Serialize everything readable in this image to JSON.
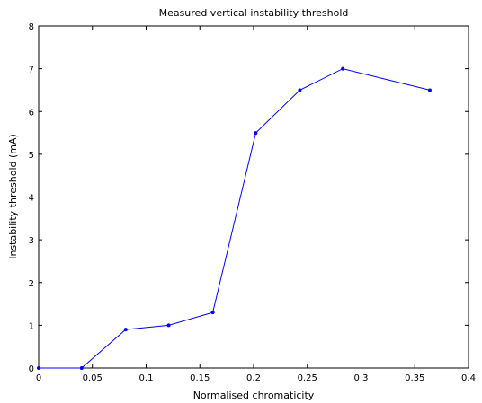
{
  "chart_data": {
    "type": "line",
    "title": "Measured vertical instability threshold",
    "xlabel": "Normalised chromaticity",
    "ylabel": "Instability threshold (mA)",
    "xlim": [
      0,
      0.4
    ],
    "ylim": [
      0,
      8
    ],
    "xticks": [
      0,
      0.05,
      0.1,
      0.15,
      0.2,
      0.25,
      0.3,
      0.35,
      0.4
    ],
    "xtick_labels": [
      "0",
      "0.05",
      "0.1",
      "0.15",
      "0.2",
      "0.25",
      "0.3",
      "0.35",
      "0.4"
    ],
    "yticks": [
      0,
      1,
      2,
      3,
      4,
      5,
      6,
      7,
      8
    ],
    "ytick_labels": [
      "0",
      "1",
      "2",
      "3",
      "4",
      "5",
      "6",
      "7",
      "8"
    ],
    "grid": false,
    "series": [
      {
        "color": "#0000ff",
        "marker": "dot",
        "x": [
          0,
          0.04,
          0.081,
          0.121,
          0.162,
          0.202,
          0.243,
          0.283,
          0.364
        ],
        "y": [
          0,
          0,
          0.9,
          1.0,
          1.3,
          5.5,
          6.5,
          7.0,
          6.5
        ]
      }
    ]
  }
}
